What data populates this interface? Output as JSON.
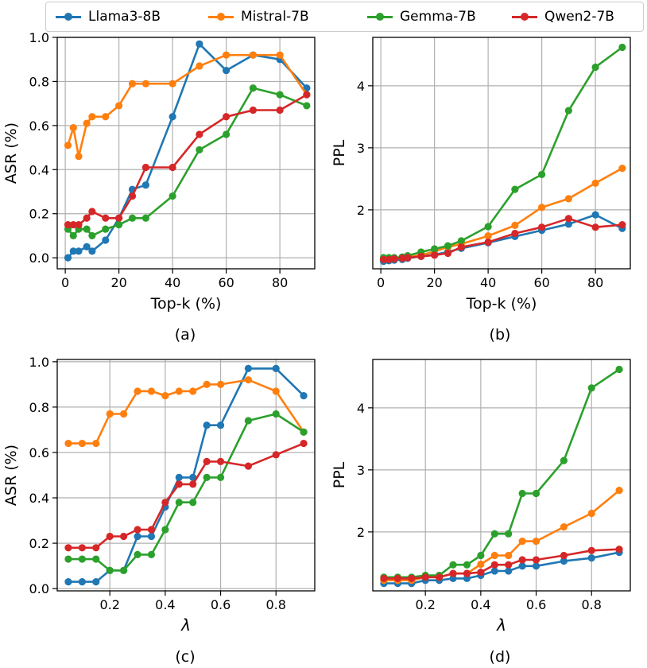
{
  "legend": {
    "items": [
      {
        "name": "Llama3-8B",
        "color": "#1f77b4"
      },
      {
        "name": "Mistral-7B",
        "color": "#ff7f0e"
      },
      {
        "name": "Gemma-7B",
        "color": "#2ca02c"
      },
      {
        "name": "Qwen2-7B",
        "color": "#d62728"
      }
    ]
  },
  "panel_labels": [
    "(a)",
    "(b)",
    "(c)",
    "(d)"
  ],
  "chart_data": [
    {
      "type": "line",
      "panel": "(a)",
      "xlabel": "Top-k (%)",
      "ylabel": "ASR (%)",
      "xlim": [
        -3,
        93
      ],
      "ylim": [
        -0.05,
        1.0
      ],
      "xticks": [
        0,
        20,
        40,
        60,
        80
      ],
      "yticks": [
        0.0,
        0.2,
        0.4,
        0.6,
        0.8,
        1.0
      ],
      "xtick_labels": [
        "0",
        "20",
        "40",
        "60",
        "80"
      ],
      "ytick_labels": [
        "0.0",
        "0.2",
        "0.4",
        "0.6",
        "0.8",
        "1.0"
      ],
      "grid": true,
      "x": [
        1,
        3,
        5,
        8,
        10,
        15,
        20,
        25,
        30,
        40,
        50,
        60,
        70,
        80,
        90
      ],
      "series": [
        {
          "name": "Llama3-8B",
          "values": [
            0.0,
            0.03,
            0.03,
            0.05,
            0.03,
            0.08,
            0.18,
            0.31,
            0.33,
            0.64,
            0.97,
            0.85,
            0.92,
            0.9,
            0.77
          ]
        },
        {
          "name": "Mistral-7B",
          "values": [
            0.51,
            0.59,
            0.46,
            0.61,
            0.64,
            0.64,
            0.69,
            0.79,
            0.79,
            0.79,
            0.87,
            0.92,
            0.92,
            0.92,
            0.74
          ]
        },
        {
          "name": "Gemma-7B",
          "values": [
            0.13,
            0.1,
            0.13,
            0.13,
            0.1,
            0.13,
            0.15,
            0.18,
            0.18,
            0.28,
            0.49,
            0.56,
            0.77,
            0.74,
            0.69
          ]
        },
        {
          "name": "Qwen2-7B",
          "values": [
            0.15,
            0.15,
            0.15,
            0.18,
            0.21,
            0.18,
            0.18,
            0.28,
            0.41,
            0.41,
            0.56,
            0.64,
            0.67,
            0.67,
            0.74
          ]
        }
      ]
    },
    {
      "type": "line",
      "panel": "(b)",
      "xlabel": "Top-k (%)",
      "ylabel": "PPL",
      "xlim": [
        -3,
        93
      ],
      "ylim": [
        1.05,
        4.78
      ],
      "xticks": [
        0,
        20,
        40,
        60,
        80
      ],
      "yticks": [
        2,
        3,
        4
      ],
      "xtick_labels": [
        "0",
        "20",
        "40",
        "60",
        "80"
      ],
      "ytick_labels": [
        "2",
        "3",
        "4"
      ],
      "grid": true,
      "x": [
        1,
        3,
        5,
        8,
        10,
        15,
        20,
        25,
        30,
        40,
        50,
        60,
        70,
        80,
        90
      ],
      "series": [
        {
          "name": "Llama3-8B",
          "values": [
            1.17,
            1.18,
            1.19,
            1.2,
            1.22,
            1.25,
            1.28,
            1.32,
            1.38,
            1.47,
            1.57,
            1.67,
            1.77,
            1.92,
            1.7
          ]
        },
        {
          "name": "Mistral-7B",
          "values": [
            1.2,
            1.2,
            1.21,
            1.22,
            1.24,
            1.27,
            1.33,
            1.4,
            1.45,
            1.58,
            1.75,
            2.04,
            2.18,
            2.43,
            2.67
          ]
        },
        {
          "name": "Gemma-7B",
          "values": [
            1.23,
            1.23,
            1.23,
            1.24,
            1.26,
            1.32,
            1.37,
            1.42,
            1.5,
            1.73,
            2.33,
            2.57,
            3.6,
            4.3,
            4.62
          ]
        },
        {
          "name": "Qwen2-7B",
          "values": [
            1.2,
            1.2,
            1.21,
            1.22,
            1.23,
            1.25,
            1.27,
            1.3,
            1.4,
            1.48,
            1.62,
            1.72,
            1.86,
            1.72,
            1.76
          ]
        }
      ]
    },
    {
      "type": "line",
      "panel": "(c)",
      "xlabel": "λ",
      "ylabel": "ASR (%)",
      "xlim": [
        0.01,
        0.94
      ],
      "ylim": [
        -0.01,
        1.01
      ],
      "xticks": [
        0.2,
        0.4,
        0.6,
        0.8
      ],
      "yticks": [
        0.0,
        0.2,
        0.4,
        0.6,
        0.8,
        1.0
      ],
      "xtick_labels": [
        "0.2",
        "0.4",
        "0.6",
        "0.8"
      ],
      "ytick_labels": [
        "0.0",
        "0.2",
        "0.4",
        "0.6",
        "0.8",
        "1.0"
      ],
      "grid": true,
      "x": [
        0.05,
        0.1,
        0.15,
        0.2,
        0.25,
        0.3,
        0.35,
        0.4,
        0.45,
        0.5,
        0.55,
        0.6,
        0.7,
        0.8,
        0.9
      ],
      "series": [
        {
          "name": "Llama3-8B",
          "values": [
            0.03,
            0.03,
            0.03,
            0.08,
            0.08,
            0.23,
            0.23,
            0.36,
            0.49,
            0.49,
            0.72,
            0.72,
            0.97,
            0.97,
            0.85
          ]
        },
        {
          "name": "Mistral-7B",
          "values": [
            0.64,
            0.64,
            0.64,
            0.77,
            0.77,
            0.87,
            0.87,
            0.85,
            0.87,
            0.87,
            0.9,
            0.9,
            0.92,
            0.87,
            0.69
          ]
        },
        {
          "name": "Gemma-7B",
          "values": [
            0.13,
            0.13,
            0.13,
            0.08,
            0.08,
            0.15,
            0.15,
            0.26,
            0.38,
            0.38,
            0.49,
            0.49,
            0.74,
            0.77,
            0.69
          ]
        },
        {
          "name": "Qwen2-7B",
          "values": [
            0.18,
            0.18,
            0.18,
            0.23,
            0.23,
            0.26,
            0.26,
            0.38,
            0.46,
            0.46,
            0.56,
            0.56,
            0.54,
            0.59,
            0.64
          ]
        }
      ]
    },
    {
      "type": "line",
      "panel": "(d)",
      "xlabel": "λ",
      "ylabel": "PPL",
      "xlim": [
        0.01,
        0.94
      ],
      "ylim": [
        1.05,
        4.78
      ],
      "xticks": [
        0.2,
        0.4,
        0.6,
        0.8
      ],
      "yticks": [
        2,
        3,
        4
      ],
      "xtick_labels": [
        "0.2",
        "0.4",
        "0.6",
        "0.8"
      ],
      "ytick_labels": [
        "2",
        "3",
        "4"
      ],
      "grid": true,
      "x": [
        0.05,
        0.1,
        0.15,
        0.2,
        0.25,
        0.3,
        0.35,
        0.4,
        0.45,
        0.5,
        0.55,
        0.6,
        0.7,
        0.8,
        0.9
      ],
      "series": [
        {
          "name": "Llama3-8B",
          "values": [
            1.17,
            1.17,
            1.17,
            1.22,
            1.22,
            1.25,
            1.25,
            1.3,
            1.37,
            1.37,
            1.45,
            1.45,
            1.53,
            1.58,
            1.67
          ]
        },
        {
          "name": "Mistral-7B",
          "values": [
            1.22,
            1.22,
            1.22,
            1.27,
            1.27,
            1.33,
            1.33,
            1.48,
            1.62,
            1.62,
            1.85,
            1.85,
            2.08,
            2.3,
            2.67
          ]
        },
        {
          "name": "Gemma-7B",
          "values": [
            1.27,
            1.27,
            1.27,
            1.3,
            1.3,
            1.47,
            1.47,
            1.62,
            1.97,
            1.97,
            2.62,
            2.62,
            3.15,
            4.32,
            4.62
          ]
        },
        {
          "name": "Qwen2-7B",
          "values": [
            1.25,
            1.25,
            1.25,
            1.27,
            1.27,
            1.33,
            1.33,
            1.35,
            1.47,
            1.47,
            1.55,
            1.55,
            1.62,
            1.7,
            1.72
          ]
        }
      ]
    }
  ]
}
